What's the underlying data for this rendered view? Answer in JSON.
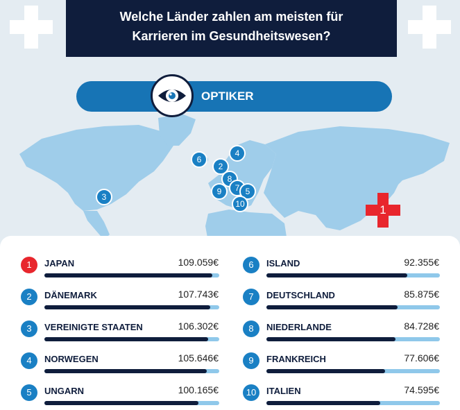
{
  "header": {
    "title_line1": "Welche Länder zahlen am meisten für",
    "title_line2": "Karrieren im Gesundheitswesen?",
    "left_icon": "medical-cross-icon",
    "right_icon": "medical-cross-icon"
  },
  "category": {
    "label": "OPTIKER",
    "icon": "eye-icon"
  },
  "colors": {
    "navy": "#0f1d3c",
    "blue": "#1774b5",
    "light_blue": "#8fc8ea",
    "red": "#e8262d",
    "background": "#e4ecf2"
  },
  "ranking": {
    "max_value": 109059,
    "left_column": [
      {
        "rank": "1",
        "country": "JAPAN",
        "amount": "109.059€",
        "value": 109059
      },
      {
        "rank": "2",
        "country": "DÄNEMARK",
        "amount": "107.743€",
        "value": 107743
      },
      {
        "rank": "3",
        "country": "VEREINIGTE STAATEN",
        "amount": "106.302€",
        "value": 106302
      },
      {
        "rank": "4",
        "country": "NORWEGEN",
        "amount": "105.646€",
        "value": 105646
      },
      {
        "rank": "5",
        "country": "UNGARN",
        "amount": "100.165€",
        "value": 100165
      }
    ],
    "right_column": [
      {
        "rank": "6",
        "country": "ISLAND",
        "amount": "92.355€",
        "value": 92355
      },
      {
        "rank": "7",
        "country": "DEUTSCHLAND",
        "amount": "85.875€",
        "value": 85875
      },
      {
        "rank": "8",
        "country": "NIEDERLANDE",
        "amount": "84.728€",
        "value": 84728
      },
      {
        "rank": "9",
        "country": "FRANKREICH",
        "amount": "77.606€",
        "value": 77606
      },
      {
        "rank": "10",
        "country": "ITALIEN",
        "amount": "74.595€",
        "value": 74595
      }
    ]
  },
  "map_markers": {
    "m1": "1",
    "m2": "2",
    "m3": "3",
    "m4": "4",
    "m5": "5",
    "m6": "6",
    "m7": "7",
    "m8": "8",
    "m9": "9",
    "m10": "10"
  }
}
